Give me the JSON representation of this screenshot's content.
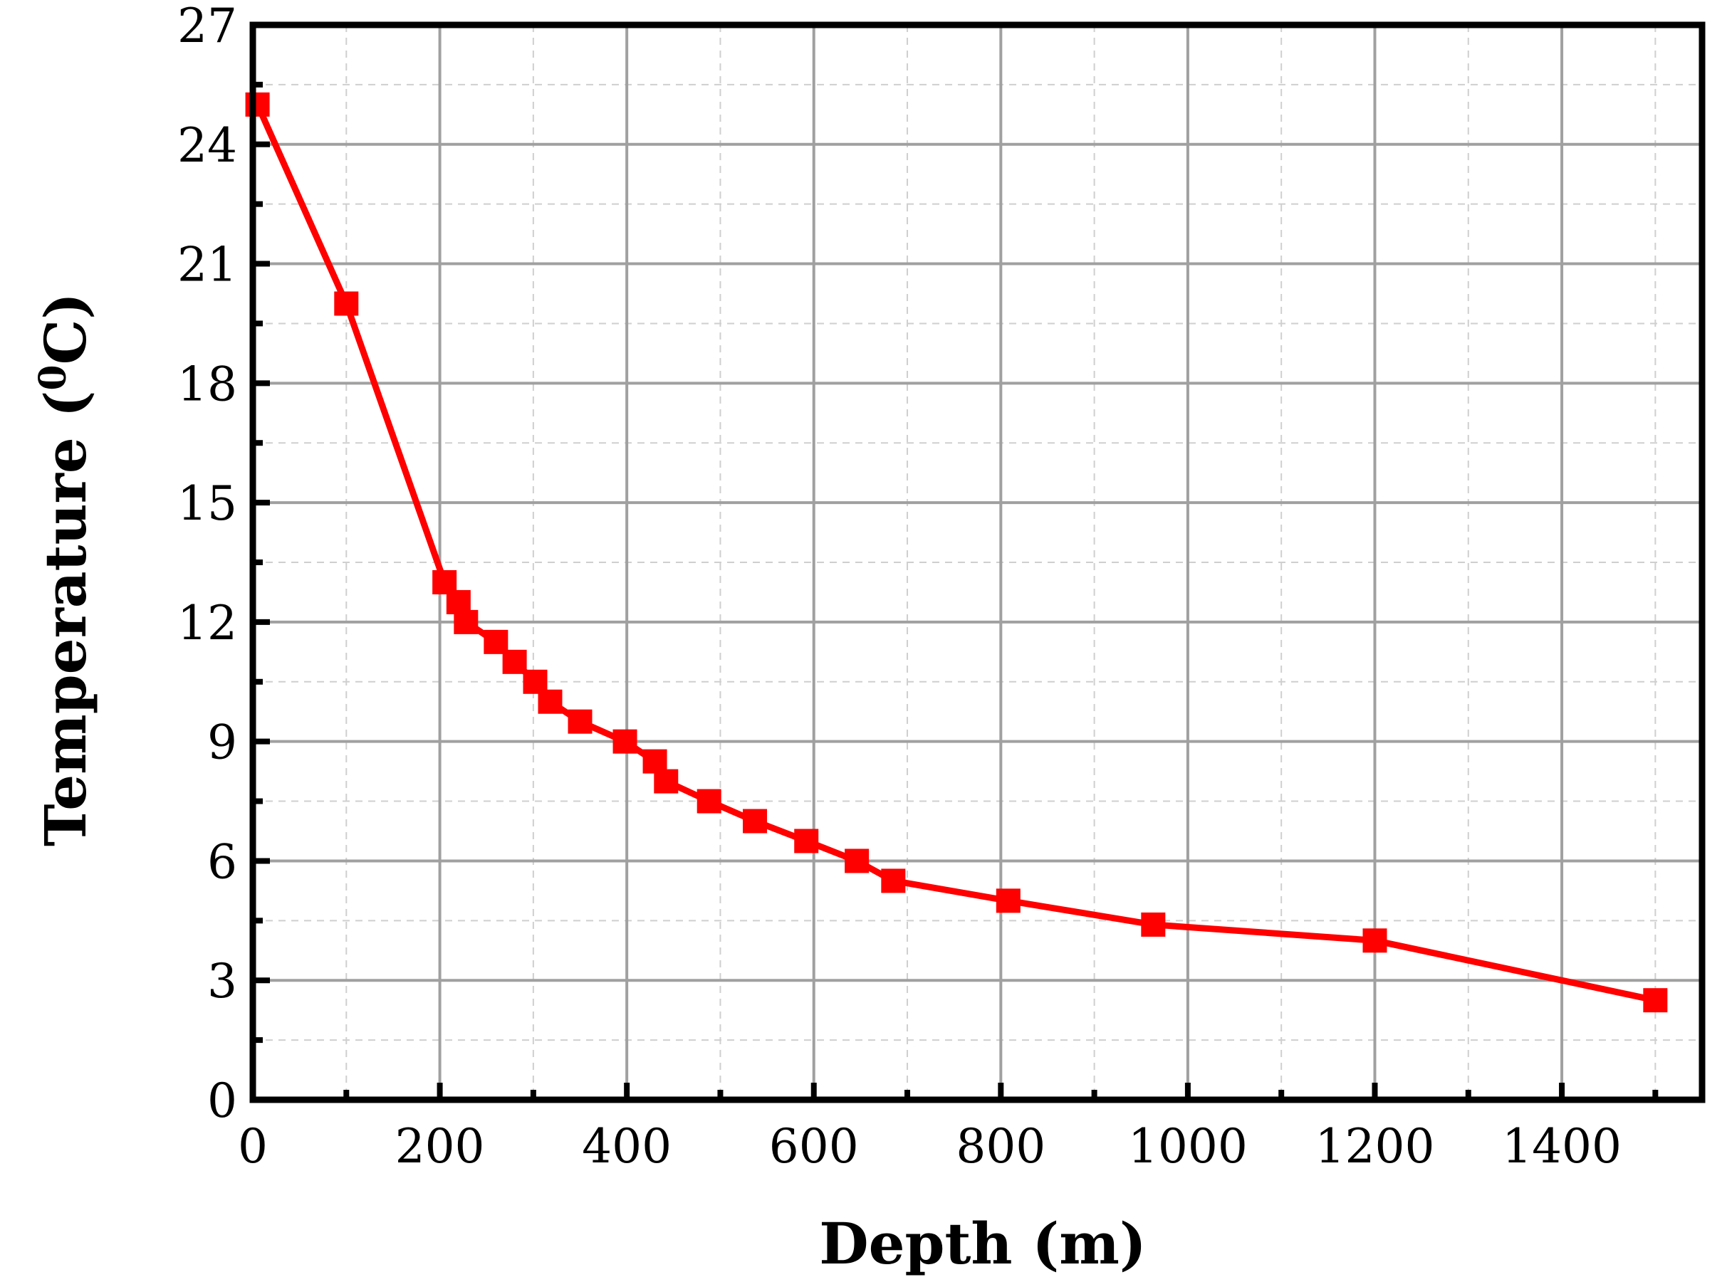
{
  "chart_data": {
    "type": "line",
    "xlabel": "Depth (m)",
    "ylabel_main": "Temperature (",
    "ylabel_sup": "0",
    "ylabel_end": "C)",
    "xlim": [
      0,
      1550
    ],
    "ylim": [
      0,
      27
    ],
    "x_ticks": [
      0,
      200,
      400,
      600,
      800,
      1000,
      1200,
      1400
    ],
    "y_ticks": [
      0,
      3,
      6,
      9,
      12,
      15,
      18,
      21,
      24,
      27
    ],
    "grid": true,
    "series": [
      {
        "color": "#ff0000",
        "marker": "square",
        "points": [
          [
            5,
            25.0
          ],
          [
            100,
            20.0
          ],
          [
            205,
            13.0
          ],
          [
            220,
            12.5
          ],
          [
            228,
            12.0
          ],
          [
            260,
            11.5
          ],
          [
            280,
            11.0
          ],
          [
            302,
            10.5
          ],
          [
            318,
            10.0
          ],
          [
            350,
            9.5
          ],
          [
            398,
            9.0
          ],
          [
            430,
            8.5
          ],
          [
            442,
            8.0
          ],
          [
            488,
            7.5
          ],
          [
            537,
            7.0
          ],
          [
            592,
            6.5
          ],
          [
            646,
            6.0
          ],
          [
            685,
            5.5
          ],
          [
            808,
            5.0
          ],
          [
            963,
            4.4
          ],
          [
            1200,
            4.0
          ],
          [
            1500,
            2.5
          ]
        ]
      }
    ]
  }
}
